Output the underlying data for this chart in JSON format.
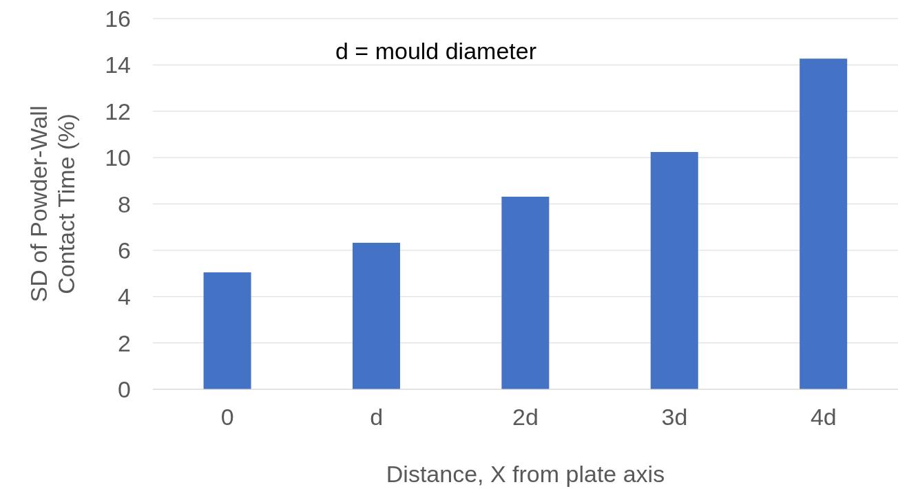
{
  "chart_data": {
    "type": "bar",
    "xlabel": "Distance, X from plate axis",
    "ylabel": "SD of Powder-Wall Contact Time (%)",
    "categories": [
      "0",
      "d",
      "2d",
      "3d",
      "4d"
    ],
    "values": [
      5.05,
      6.32,
      8.31,
      10.24,
      14.27
    ],
    "color": "#4472c4",
    "ylim": [
      0,
      16
    ],
    "yticks": [
      0,
      2,
      4,
      6,
      8,
      10,
      12,
      14,
      16
    ],
    "grid": "y",
    "annotations": [
      "d = mould diameter"
    ]
  }
}
